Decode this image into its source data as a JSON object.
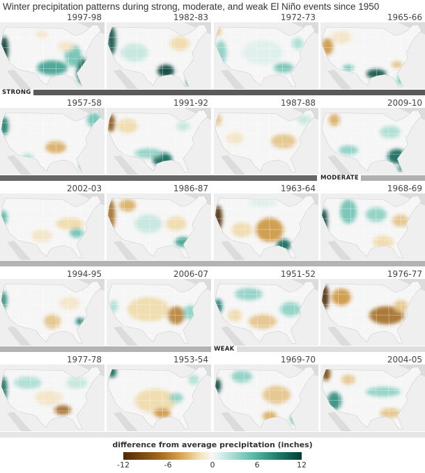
{
  "title": "Winter precipitation patterns during strong, moderate, and weak El Niño events since 1950",
  "rows": [
    {
      "years": [
        "1997-98",
        "1982-83",
        "1972-73",
        "1965-66"
      ],
      "band_label": "STRONG"
    },
    {
      "years": [
        "1957-58",
        "1991-92",
        "1987-88",
        "2009-10"
      ],
      "band_label": "MODERATE"
    },
    {
      "years": [
        "2002-03",
        "1986-87",
        "1963-64",
        "1968-69"
      ],
      "band_label": ""
    },
    {
      "years": [
        "1994-95",
        "2006-07",
        "1951-52",
        "1976-77"
      ],
      "band_label": "WEAK"
    },
    {
      "years": [
        "1977-78",
        "1953-54",
        "1969-70",
        "2004-05"
      ],
      "band_label": ""
    }
  ],
  "legend": {
    "title": "difference from average precipitation (inches)",
    "ticks": [
      "-12",
      "-6",
      "0",
      "6",
      "12"
    ],
    "colors": {
      "dry": "#4d2a06",
      "neutral": "#f8f8f8",
      "wet": "#023d33"
    }
  }
}
